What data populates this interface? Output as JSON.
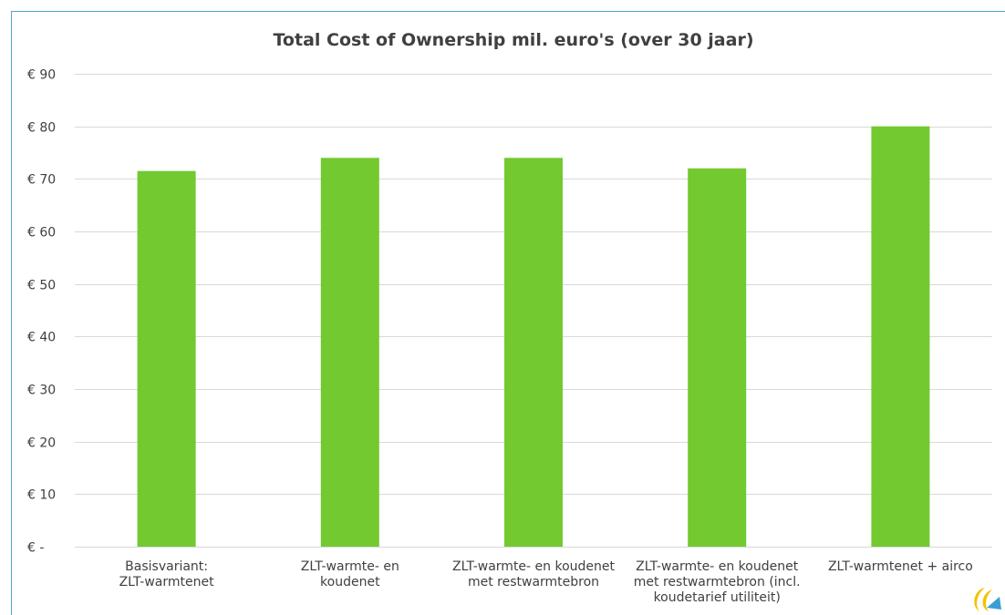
{
  "chart_data": {
    "type": "bar",
    "title": "Total Cost of Ownership mil. euro's (over 30 jaar)",
    "xlabel": "",
    "ylabel": "",
    "categories": [
      [
        "Basisvariant:",
        "ZLT-warmtenet"
      ],
      [
        "ZLT-warmte- en",
        "koudenet"
      ],
      [
        "ZLT-warmte- en koudenet",
        "met restwarmtebron"
      ],
      [
        "ZLT-warmte- en koudenet",
        "met restwarmtebron (incl.",
        "koudetarief utiliteit)"
      ],
      [
        "ZLT-warmtenet + airco"
      ]
    ],
    "values": [
      71.5,
      74,
      74,
      72,
      80
    ],
    "ylim": [
      0,
      90
    ],
    "yticks": [
      0,
      10,
      20,
      30,
      40,
      50,
      60,
      70,
      80,
      90
    ],
    "ytick_labels": [
      "€ -",
      "€ 10",
      "€ 20",
      "€ 30",
      "€ 40",
      "€ 50",
      "€ 60",
      "€ 70",
      "€ 80",
      "€ 90"
    ],
    "grid": true,
    "legend": "none",
    "bar_color": "#72c930",
    "grid_color": "#d9d9d9",
    "text_color": "#404040",
    "frame_color": "#4fa6c4"
  },
  "logo": {
    "icon": "company-logo-icon"
  }
}
